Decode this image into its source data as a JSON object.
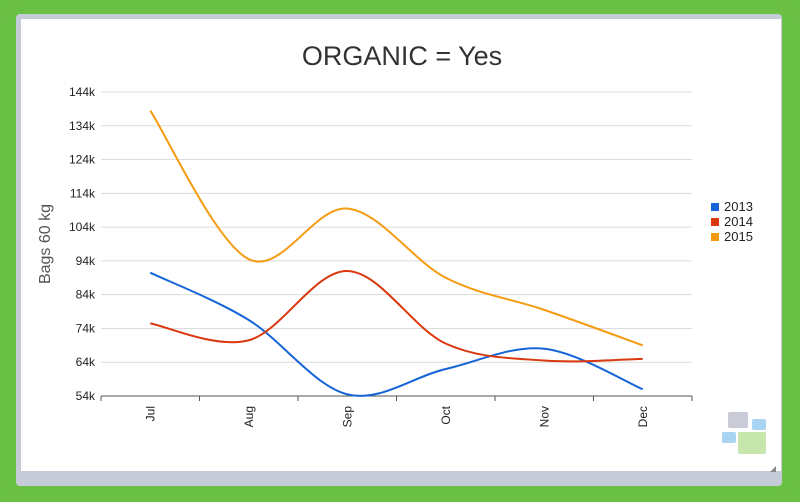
{
  "chart_data": {
    "type": "line",
    "title": "ORGANIC = Yes",
    "xlabel": "",
    "ylabel": "Bags 60 kg",
    "categories": [
      "Jul",
      "Aug",
      "Sep",
      "Oct",
      "Nov",
      "Dec"
    ],
    "yticks": [
      "54k",
      "64k",
      "74k",
      "84k",
      "94k",
      "104k",
      "114k",
      "124k",
      "134k",
      "144k"
    ],
    "ylim": [
      54000,
      144000
    ],
    "grid": true,
    "legend_position": "right",
    "series": [
      {
        "name": "2013",
        "color": "#1565d8",
        "values": [
          90500,
          76500,
          54500,
          62000,
          68000,
          56000
        ]
      },
      {
        "name": "2014",
        "color": "#d9380f",
        "values": [
          75500,
          70500,
          91000,
          69500,
          64500,
          65000
        ]
      },
      {
        "name": "2015",
        "color": "#f59b12",
        "values": [
          138500,
          94500,
          109500,
          89000,
          79500,
          69000
        ]
      }
    ]
  },
  "logo": {
    "name": "app-logo"
  }
}
